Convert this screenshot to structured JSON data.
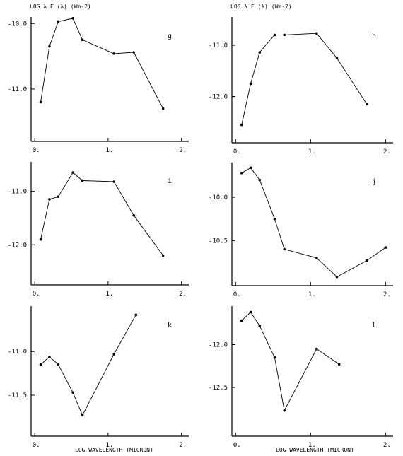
{
  "chart_data": [
    {
      "type": "line",
      "panel": "g",
      "ylabel": "LOG λ F (λ) (Wm-2)",
      "xlabel": "",
      "x_ticks": [
        "0.",
        "1.",
        "2."
      ],
      "y_ticks": [
        "-10.0",
        "-11.0"
      ],
      "y_tick_values": [
        -10.0,
        -11.0
      ],
      "xlim": [
        -0.05,
        2.1
      ],
      "ylim": [
        -11.8,
        -9.9
      ],
      "x": [
        0.08,
        0.2,
        0.32,
        0.52,
        0.65,
        1.08,
        1.35,
        1.75
      ],
      "y": [
        -11.2,
        -10.35,
        -9.97,
        -9.92,
        -10.25,
        -10.46,
        -10.44,
        -11.3
      ]
    },
    {
      "type": "line",
      "panel": "h",
      "ylabel": "LOG λ F (λ) (Wm-2)",
      "xlabel": "",
      "x_ticks": [
        "0.",
        "1.",
        "2."
      ],
      "y_ticks": [
        "-11.0",
        "-12.0"
      ],
      "y_tick_values": [
        -11.0,
        -12.0
      ],
      "xlim": [
        -0.05,
        2.1
      ],
      "ylim": [
        -12.9,
        -10.45
      ],
      "x": [
        0.08,
        0.2,
        0.32,
        0.52,
        0.65,
        1.08,
        1.35,
        1.75
      ],
      "y": [
        -12.55,
        -11.75,
        -11.14,
        -10.8,
        -10.8,
        -10.77,
        -11.25,
        -12.15
      ]
    },
    {
      "type": "line",
      "panel": "i",
      "ylabel": "",
      "xlabel": "",
      "x_ticks": [
        "0.",
        "1.",
        "2."
      ],
      "y_ticks": [
        "-11.0",
        "-12.0"
      ],
      "y_tick_values": [
        -11.0,
        -12.0
      ],
      "xlim": [
        -0.05,
        2.1
      ],
      "ylim": [
        -12.75,
        -10.45
      ],
      "x": [
        0.08,
        0.2,
        0.32,
        0.52,
        0.65,
        1.08,
        1.35,
        1.75
      ],
      "y": [
        -11.9,
        -11.15,
        -11.1,
        -10.65,
        -10.8,
        -10.82,
        -11.45,
        -12.2
      ]
    },
    {
      "type": "line",
      "panel": "j",
      "ylabel": "",
      "xlabel": "",
      "x_ticks": [
        "0.",
        "1.",
        "2."
      ],
      "y_ticks": [
        "-10.0",
        "-10.5"
      ],
      "y_tick_values": [
        -10.0,
        -10.5
      ],
      "xlim": [
        -0.05,
        2.1
      ],
      "ylim": [
        -11.02,
        -9.6
      ],
      "x": [
        0.08,
        0.2,
        0.32,
        0.52,
        0.65,
        1.08,
        1.35,
        1.75,
        2.0
      ],
      "y": [
        -9.72,
        -9.66,
        -9.8,
        -10.25,
        -10.6,
        -10.7,
        -10.92,
        -10.73,
        -10.58
      ]
    },
    {
      "type": "line",
      "panel": "k",
      "ylabel": "",
      "xlabel": "LOG WAVELENGTH (MICRON)",
      "x_ticks": [
        "0.",
        "1.",
        "2."
      ],
      "y_ticks": [
        "-11.0",
        "-11.5"
      ],
      "y_tick_values": [
        -11.0,
        -11.5
      ],
      "xlim": [
        -0.05,
        2.1
      ],
      "ylim": [
        -11.97,
        -10.48
      ],
      "x": [
        0.08,
        0.2,
        0.32,
        0.52,
        0.65,
        1.08,
        1.38
      ],
      "y": [
        -11.15,
        -11.06,
        -11.15,
        -11.47,
        -11.73,
        -11.03,
        -10.58
      ]
    },
    {
      "type": "line",
      "panel": "l",
      "ylabel": "",
      "xlabel": "LOG WAVELENGTH (MICRON)",
      "x_ticks": [
        "0.",
        "1.",
        "2."
      ],
      "y_ticks": [
        "-12.0",
        "-12.5"
      ],
      "y_tick_values": [
        -12.0,
        -12.5
      ],
      "xlim": [
        -0.05,
        2.1
      ],
      "ylim": [
        -13.07,
        -11.55
      ],
      "x": [
        0.08,
        0.2,
        0.32,
        0.52,
        0.65,
        1.08,
        1.38
      ],
      "y": [
        -11.72,
        -11.62,
        -11.78,
        -12.15,
        -12.77,
        -12.05,
        -12.23
      ]
    }
  ]
}
